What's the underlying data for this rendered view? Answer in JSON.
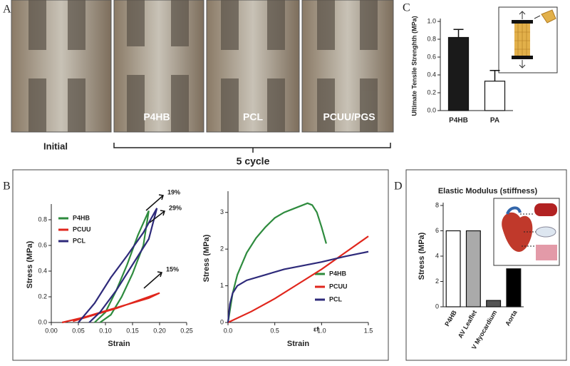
{
  "figure": {
    "panel_labels": [
      "A",
      "B",
      "C",
      "D"
    ],
    "photo_labels": [
      "Initial",
      "P4HB",
      "PCL",
      "PCUU/PGS"
    ],
    "bracket_label": "5 cycle"
  },
  "chart_data": [
    {
      "type": "line",
      "xlabel": "Strain",
      "ylabel": "Stress (MPa)",
      "xlim": [
        0,
        0.25
      ],
      "xticks": [
        {
          "value": 0,
          "label": "0.00"
        },
        0.05,
        {
          "value": 0.1,
          "label": "0.10"
        },
        0.15,
        {
          "value": 0.2,
          "label": "0.20"
        },
        0.25
      ],
      "ylim": [
        0,
        0.9
      ],
      "yticks": [
        {
          "value": 0,
          "label": "0.0"
        },
        0.2,
        0.4,
        0.6,
        0.8
      ],
      "legend": "upper left",
      "annotations": [
        "19%",
        "29%",
        "15%"
      ],
      "series": [
        {
          "name": "P4HB",
          "color": "#2e8b3e",
          "x": [
            0.08,
            0.1,
            0.12,
            0.14,
            0.16,
            0.18,
            0.17,
            0.15,
            0.13,
            0.11,
            0.09
          ],
          "values": [
            0,
            0.08,
            0.25,
            0.45,
            0.68,
            0.87,
            0.6,
            0.38,
            0.2,
            0.06,
            0
          ]
        },
        {
          "name": "PCUU",
          "color": "#e0261c",
          "x": [
            0.02,
            0.06,
            0.1,
            0.14,
            0.18,
            0.2,
            0.16,
            0.12,
            0.08,
            0.04
          ],
          "values": [
            0,
            0.04,
            0.09,
            0.14,
            0.19,
            0.23,
            0.17,
            0.11,
            0.06,
            0.01
          ]
        },
        {
          "name": "PCL",
          "color": "#2e2a7a",
          "x": [
            0.05,
            0.08,
            0.11,
            0.14,
            0.17,
            0.195,
            0.18,
            0.15,
            0.12,
            0.09,
            0.07
          ],
          "values": [
            0,
            0.15,
            0.35,
            0.52,
            0.7,
            0.89,
            0.65,
            0.45,
            0.25,
            0.08,
            0
          ]
        }
      ]
    },
    {
      "type": "line",
      "xlabel": "Strain",
      "ylabel": "Stress (MPa)",
      "xlim": [
        0,
        1.5
      ],
      "xticks": [
        {
          "value": 0,
          "label": "0.0"
        },
        0.5,
        {
          "value": 1,
          "label": "1.0"
        },
        1.5
      ],
      "ylim": [
        0,
        3.5
      ],
      "yticks": [
        0,
        1,
        2,
        3
      ],
      "legend": "lower right",
      "annotations": [
        "εf"
      ],
      "series": [
        {
          "name": "P4HB",
          "color": "#2e8b3e",
          "x": [
            0,
            0.05,
            0.1,
            0.2,
            0.3,
            0.4,
            0.5,
            0.6,
            0.7,
            0.8,
            0.85,
            0.9,
            0.95,
            1.0,
            1.05
          ],
          "values": [
            0,
            0.8,
            1.3,
            1.9,
            2.3,
            2.6,
            2.85,
            3.0,
            3.1,
            3.2,
            3.25,
            3.2,
            3.0,
            2.6,
            2.15
          ]
        },
        {
          "name": "PCUU",
          "color": "#e0261c",
          "x": [
            0,
            0.25,
            0.5,
            0.75,
            1.0,
            1.25,
            1.5
          ],
          "values": [
            0,
            0.3,
            0.65,
            1.05,
            1.45,
            1.9,
            2.35
          ]
        },
        {
          "name": "PCL",
          "color": "#2e2a7a",
          "x": [
            0,
            0.02,
            0.05,
            0.1,
            0.2,
            0.4,
            0.6,
            0.8,
            1.0,
            1.25,
            1.5
          ],
          "values": [
            0,
            0.5,
            0.8,
            1.0,
            1.15,
            1.3,
            1.45,
            1.55,
            1.65,
            1.8,
            1.93
          ]
        }
      ]
    },
    {
      "type": "bar",
      "ylabel": "Ultimate Tensile Strenghth (MPa)",
      "categories": [
        "P4HB",
        "PA"
      ],
      "values": [
        0.82,
        0.33
      ],
      "errors": [
        0.09,
        0.12
      ],
      "colors": [
        "#1a1a1a",
        "#ffffff"
      ],
      "ylim": [
        0,
        1.0
      ],
      "yticks": [
        {
          "value": 0,
          "label": "0.0"
        },
        0.2,
        0.4,
        0.6,
        0.8,
        {
          "value": 1,
          "label": "1.0"
        }
      ]
    },
    {
      "type": "bar",
      "title": "Elastic Modulus (stiffness)",
      "ylabel": "Stress (MPa)",
      "categories": [
        "P4HB",
        "AV Leaflet",
        "V Myocardium",
        "Aorta"
      ],
      "values": [
        6,
        6,
        0.5,
        3
      ],
      "colors": [
        "#ffffff",
        "#aaaaaa",
        "#555555",
        "#000000"
      ],
      "ylim": [
        0,
        8
      ],
      "yticks": [
        0,
        2,
        4,
        6,
        8
      ]
    }
  ]
}
